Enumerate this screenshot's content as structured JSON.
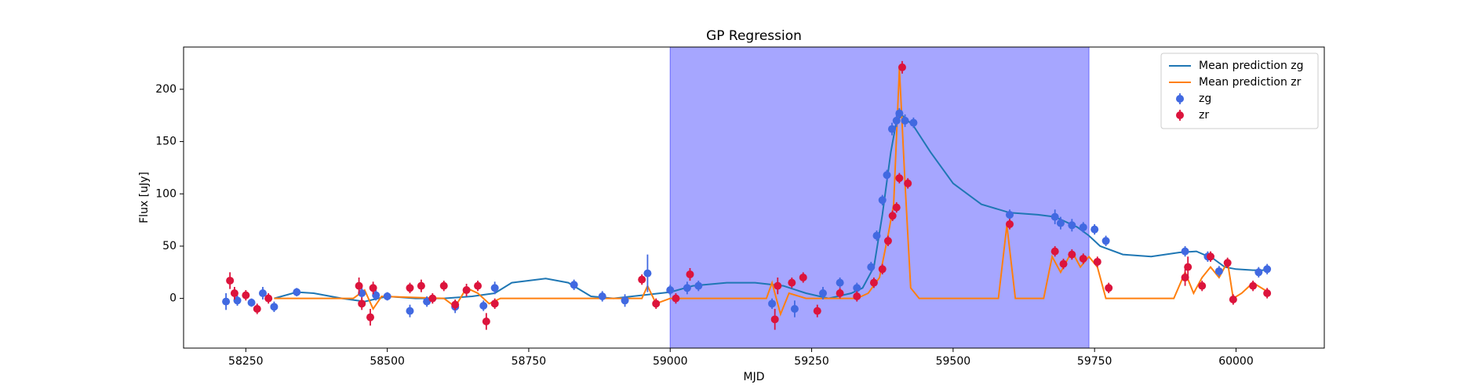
{
  "chart_data": {
    "type": "line",
    "title": "GP Regression",
    "x_label": "MJD",
    "y_label": "Flux [uJy]",
    "xlim": [
      58140,
      60156
    ],
    "ylim": [
      -47.5,
      240.4
    ],
    "xticks": [
      58250,
      58500,
      58750,
      59000,
      59250,
      59500,
      59750,
      60000
    ],
    "yticks": [
      0,
      50,
      100,
      150,
      200
    ],
    "grid": false,
    "legend": "upper right",
    "span": {
      "x": [
        59000,
        59740
      ],
      "color": "#a6a6ff"
    },
    "series": [
      {
        "name": "Mean prediction zg",
        "type": "line",
        "color": "#1f77b4",
        "x": [
          58300,
          58340,
          58370,
          58420,
          58460,
          58500,
          58550,
          58600,
          58650,
          58690,
          58720,
          58780,
          58820,
          58860,
          58900,
          58950,
          59000,
          59040,
          59100,
          59150,
          59200,
          59240,
          59280,
          59320,
          59340,
          59360,
          59375,
          59390,
          59400,
          59410,
          59430,
          59460,
          59500,
          59550,
          59600,
          59650,
          59680,
          59720,
          59740,
          59760,
          59800,
          59850,
          59900,
          59930,
          59960,
          59980,
          60000,
          60030,
          60060
        ],
        "values": [
          0,
          6,
          5,
          0,
          -3,
          2,
          0,
          0,
          2,
          5,
          15,
          19,
          15,
          2,
          0,
          3,
          6,
          12,
          15,
          15,
          12,
          5,
          0,
          5,
          10,
          30,
          80,
          140,
          170,
          175,
          165,
          140,
          110,
          90,
          82,
          80,
          78,
          68,
          60,
          50,
          42,
          40,
          44,
          45,
          38,
          30,
          28,
          27,
          27
        ]
      },
      {
        "name": "Mean prediction zr",
        "type": "line",
        "color": "#ff7f0e",
        "x": [
          58300,
          58440,
          58460,
          58475,
          58490,
          58600,
          58620,
          58640,
          58660,
          58680,
          58700,
          58950,
          58960,
          58975,
          59000,
          59170,
          59180,
          59195,
          59210,
          59240,
          59330,
          59350,
          59370,
          59385,
          59395,
          59405,
          59415,
          59425,
          59440,
          59580,
          59595,
          59610,
          59660,
          59675,
          59690,
          59710,
          59725,
          59740,
          59755,
          59770,
          59890,
          59910,
          59925,
          59940,
          59955,
          59970,
          59985,
          59995,
          60010,
          60030,
          60060
        ],
        "values": [
          0,
          0,
          8,
          -10,
          2,
          0,
          -8,
          10,
          5,
          -5,
          0,
          0,
          12,
          -5,
          0,
          0,
          15,
          -15,
          5,
          0,
          0,
          5,
          20,
          60,
          90,
          220,
          110,
          10,
          0,
          0,
          70,
          0,
          0,
          40,
          25,
          45,
          30,
          40,
          30,
          0,
          0,
          25,
          5,
          20,
          30,
          20,
          35,
          0,
          5,
          15,
          5
        ]
      },
      {
        "name": "zg",
        "type": "errorbar",
        "color": "#4169e1",
        "x": [
          58215,
          58235,
          58260,
          58280,
          58300,
          58340,
          58455,
          58480,
          58500,
          58540,
          58570,
          58620,
          58670,
          58690,
          58830,
          58880,
          58920,
          58960,
          59000,
          59030,
          59050,
          59180,
          59220,
          59270,
          59300,
          59330,
          59355,
          59365,
          59375,
          59383,
          59392,
          59400,
          59405,
          59415,
          59430,
          59600,
          59680,
          59690,
          59710,
          59730,
          59750,
          59770,
          59910,
          59950,
          59970,
          60040,
          60055
        ],
        "values": [
          -3,
          -2,
          -4,
          5,
          -8,
          6,
          5,
          3,
          2,
          -12,
          -3,
          -8,
          -7,
          10,
          13,
          2,
          -2,
          24,
          8,
          10,
          12,
          -5,
          -10,
          5,
          15,
          10,
          30,
          60,
          94,
          118,
          162,
          170,
          177,
          170,
          168,
          80,
          78,
          72,
          70,
          68,
          66,
          55,
          45,
          40,
          26,
          25,
          28
        ],
        "errors": [
          8,
          5,
          4,
          6,
          5,
          4,
          6,
          5,
          4,
          6,
          5,
          6,
          5,
          6,
          5,
          5,
          6,
          18,
          5,
          6,
          5,
          5,
          8,
          6,
          5,
          5,
          5,
          5,
          5,
          5,
          6,
          6,
          5,
          6,
          5,
          5,
          7,
          6,
          6,
          5,
          5,
          5,
          5,
          5,
          5,
          5,
          5
        ]
      },
      {
        "name": "zr",
        "type": "errorbar",
        "color": "#dc143c",
        "x": [
          58222,
          58230,
          58250,
          58270,
          58290,
          58450,
          58455,
          58470,
          58475,
          58540,
          58560,
          58580,
          58600,
          58620,
          58640,
          58660,
          58675,
          58690,
          58950,
          58975,
          59010,
          59035,
          59185,
          59190,
          59215,
          59235,
          59260,
          59300,
          59330,
          59360,
          59375,
          59385,
          59393,
          59400,
          59405,
          59410,
          59420,
          59600,
          59680,
          59695,
          59710,
          59730,
          59755,
          59775,
          59910,
          59915,
          59940,
          59955,
          59985,
          59995,
          60030,
          60055
        ],
        "values": [
          17,
          5,
          3,
          -10,
          0,
          12,
          -5,
          -18,
          10,
          10,
          12,
          0,
          12,
          -6,
          8,
          12,
          -22,
          -5,
          18,
          -5,
          0,
          23,
          -20,
          12,
          15,
          20,
          -12,
          5,
          2,
          15,
          28,
          55,
          79,
          87,
          115,
          221,
          110,
          71,
          45,
          33,
          42,
          38,
          35,
          10,
          20,
          30,
          12,
          40,
          34,
          -1,
          12,
          5
        ],
        "errors": [
          8,
          6,
          5,
          5,
          5,
          8,
          6,
          8,
          6,
          5,
          6,
          5,
          5,
          5,
          6,
          5,
          8,
          5,
          5,
          5,
          5,
          6,
          10,
          8,
          5,
          5,
          6,
          5,
          5,
          5,
          5,
          5,
          5,
          5,
          5,
          6,
          5,
          5,
          5,
          5,
          5,
          5,
          5,
          5,
          8,
          10,
          5,
          5,
          5,
          5,
          5,
          5
        ]
      }
    ]
  }
}
